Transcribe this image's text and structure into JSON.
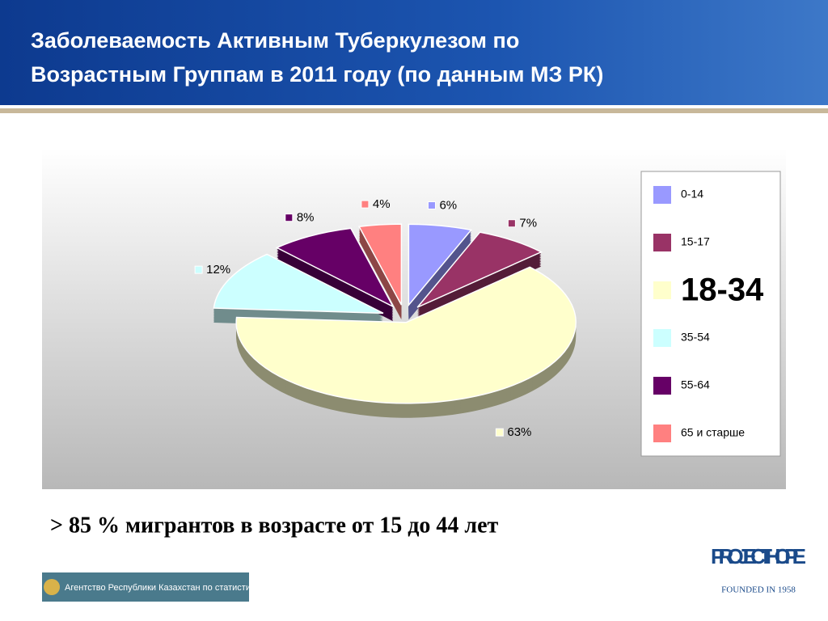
{
  "chart_data": {
    "type": "pie",
    "title": "Заболеваемость Активным Туберкулезом по Возрастным Группам в 2011 году (по данным МЗ РК)",
    "categories": [
      "0-14",
      "15-17",
      "18-34",
      "35-54",
      "55-64",
      "65 и старше"
    ],
    "values": [
      6,
      7,
      63,
      12,
      8,
      4
    ],
    "value_labels": [
      "6%",
      "7%",
      "63%",
      "12%",
      "8%",
      "4%"
    ],
    "colors": [
      "#9999ff",
      "#993366",
      "#ffffcc",
      "#ccffff",
      "#660066",
      "#ff8080"
    ],
    "legend": "right",
    "legend_emphasis": 2
  },
  "note": "> 85 % мигрантов в возрасте от 15 до 44 лет",
  "logos": {
    "agency": "Агентство Республики Казахстан по статистике",
    "hope": "PROJECT HOPE",
    "founded": "FOUNDED IN 1958"
  }
}
